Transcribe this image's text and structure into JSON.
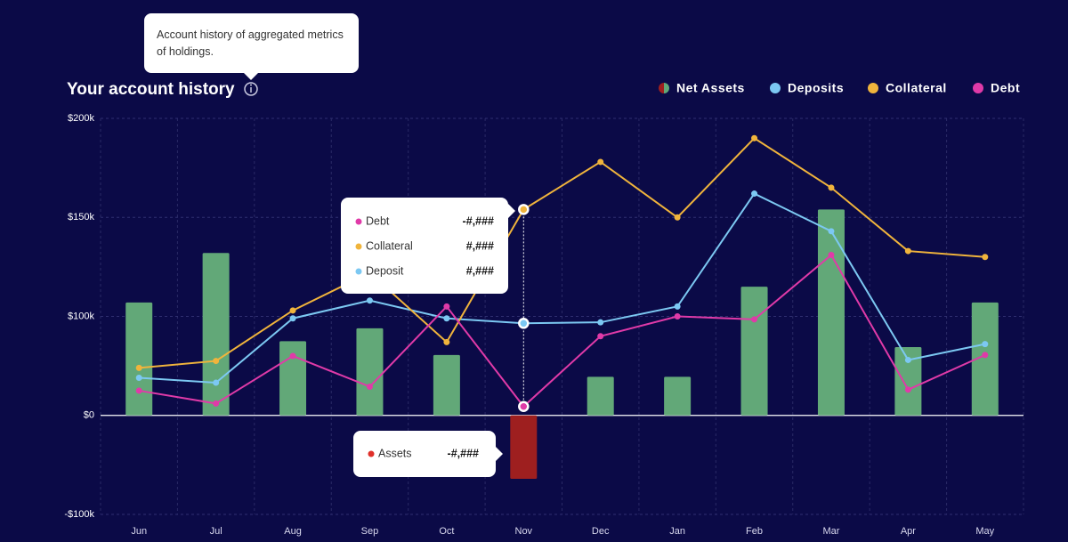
{
  "chart_data": {
    "type": "bar",
    "title": "Your account history",
    "info_tooltip": "Account history of aggregated metrics of holdings.",
    "categories": [
      "Jun",
      "Jul",
      "Aug",
      "Sep",
      "Oct",
      "Nov",
      "Dec",
      "Jan",
      "Feb",
      "Mar",
      "Apr",
      "May"
    ],
    "series": [
      {
        "name": "Net Assets",
        "type": "bar",
        "color": "#62a878",
        "negative_color": "#9e1f1f",
        "values": [
          107000,
          132000,
          75000,
          88000,
          61000,
          -64000,
          39000,
          39000,
          115000,
          154000,
          69000,
          107000
        ]
      },
      {
        "name": "Deposits",
        "type": "line",
        "color": "#7cc8f2",
        "values": [
          38000,
          33000,
          98000,
          108000,
          98000,
          93000,
          94000,
          105000,
          162000,
          143000,
          56000,
          72000
        ]
      },
      {
        "name": "Collateral",
        "type": "line",
        "color": "#f0b43c",
        "values": [
          48000,
          55000,
          103000,
          122000,
          74000,
          154000,
          178000,
          150000,
          190000,
          165000,
          133000,
          130000
        ]
      },
      {
        "name": "Debt",
        "type": "line",
        "color": "#e03aa8",
        "values": [
          25000,
          12000,
          60000,
          29000,
          105000,
          9000,
          80000,
          100000,
          97000,
          131000,
          26000,
          61000
        ]
      }
    ],
    "ylim": [
      -100000,
      200000
    ],
    "yticks": [
      {
        "value": -100000,
        "label": "-$100k"
      },
      {
        "value": 0,
        "label": "$0"
      },
      {
        "value": 100000,
        "label": "$100k"
      },
      {
        "value": 150000,
        "label": "$150k"
      },
      {
        "value": 200000,
        "label": "$200k"
      }
    ],
    "grid": true,
    "legend": "top-right",
    "highlight_index": 5,
    "hover_tooltip": [
      {
        "label": "Debt",
        "value": "-#,###",
        "color": "#e03aa8"
      },
      {
        "label": "Collateral",
        "value": "#,###",
        "color": "#f0b43c"
      },
      {
        "label": "Deposit",
        "value": "#,###",
        "color": "#7cc8f2"
      }
    ],
    "assets_tooltip": {
      "label": "Assets",
      "value": "-#,###",
      "color": "#e0302a"
    }
  }
}
